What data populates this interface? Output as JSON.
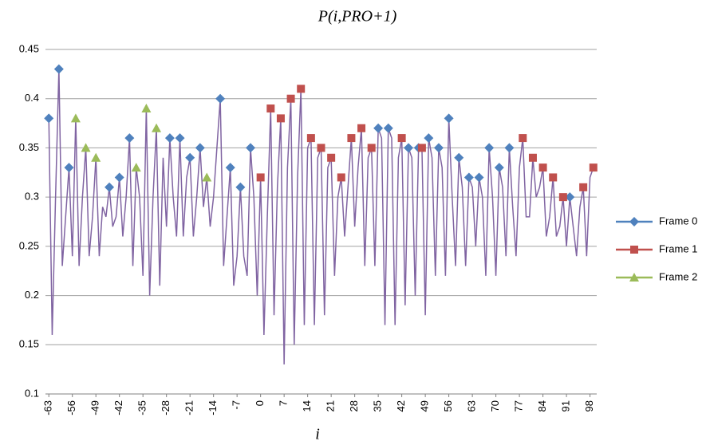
{
  "chart_data": {
    "type": "line",
    "title": "P(i,PRO+1)",
    "xlabel": "i",
    "xlim": [
      -64,
      100
    ],
    "ylim": [
      0.1,
      0.45
    ],
    "yticks": [
      0.1,
      0.15,
      0.2,
      0.25,
      0.3,
      0.35,
      0.4,
      0.45
    ],
    "xticks": [
      -63,
      -56,
      -49,
      -42,
      -35,
      -28,
      -21,
      -14,
      -7,
      0,
      7,
      14,
      21,
      28,
      35,
      42,
      49,
      56,
      63,
      70,
      77,
      84,
      91,
      98
    ],
    "grid": true,
    "legend": "right",
    "line": {
      "color": "#8064a2",
      "x": [
        -63,
        -62,
        -61,
        -60,
        -59,
        -58,
        -57,
        -56,
        -55,
        -54,
        -53,
        -52,
        -51,
        -50,
        -49,
        -48,
        -47,
        -46,
        -45,
        -44,
        -43,
        -42,
        -41,
        -40,
        -39,
        -38,
        -37,
        -36,
        -35,
        -34,
        -33,
        -32,
        -31,
        -30,
        -29,
        -28,
        -27,
        -26,
        -25,
        -24,
        -23,
        -22,
        -21,
        -20,
        -19,
        -18,
        -17,
        -16,
        -15,
        -14,
        -13,
        -12,
        -11,
        -10,
        -9,
        -8,
        -7,
        -6,
        -5,
        -4,
        -3,
        -2,
        -1,
        0,
        1,
        2,
        3,
        4,
        5,
        6,
        7,
        8,
        9,
        10,
        11,
        12,
        13,
        14,
        15,
        16,
        17,
        18,
        19,
        20,
        21,
        22,
        23,
        24,
        25,
        26,
        27,
        28,
        29,
        30,
        31,
        32,
        33,
        34,
        35,
        36,
        37,
        38,
        39,
        40,
        41,
        42,
        43,
        44,
        45,
        46,
        47,
        48,
        49,
        50,
        51,
        52,
        53,
        54,
        55,
        56,
        57,
        58,
        59,
        60,
        61,
        62,
        63,
        64,
        65,
        66,
        67,
        68,
        69,
        70,
        71,
        72,
        73,
        74,
        75,
        76,
        77,
        78,
        79,
        80,
        81,
        82,
        83,
        84,
        85,
        86,
        87,
        88,
        89,
        90,
        91,
        92,
        93,
        94,
        95,
        96,
        97,
        98,
        99
      ],
      "values": [
        0.38,
        0.16,
        0.3,
        0.43,
        0.23,
        0.28,
        0.33,
        0.24,
        0.38,
        0.23,
        0.3,
        0.35,
        0.24,
        0.28,
        0.34,
        0.24,
        0.29,
        0.28,
        0.31,
        0.27,
        0.28,
        0.32,
        0.26,
        0.3,
        0.36,
        0.23,
        0.33,
        0.3,
        0.22,
        0.39,
        0.2,
        0.3,
        0.37,
        0.21,
        0.34,
        0.27,
        0.36,
        0.3,
        0.26,
        0.36,
        0.26,
        0.32,
        0.34,
        0.26,
        0.3,
        0.35,
        0.29,
        0.32,
        0.27,
        0.3,
        0.35,
        0.4,
        0.23,
        0.28,
        0.33,
        0.21,
        0.24,
        0.31,
        0.24,
        0.22,
        0.35,
        0.3,
        0.2,
        0.32,
        0.16,
        0.28,
        0.39,
        0.18,
        0.31,
        0.38,
        0.13,
        0.33,
        0.4,
        0.15,
        0.32,
        0.41,
        0.17,
        0.35,
        0.36,
        0.17,
        0.34,
        0.35,
        0.18,
        0.33,
        0.34,
        0.22,
        0.3,
        0.32,
        0.26,
        0.31,
        0.36,
        0.27,
        0.33,
        0.37,
        0.23,
        0.34,
        0.35,
        0.23,
        0.37,
        0.36,
        0.17,
        0.37,
        0.36,
        0.17,
        0.34,
        0.36,
        0.19,
        0.35,
        0.34,
        0.2,
        0.35,
        0.35,
        0.18,
        0.36,
        0.34,
        0.22,
        0.35,
        0.33,
        0.22,
        0.38,
        0.3,
        0.23,
        0.34,
        0.31,
        0.23,
        0.32,
        0.31,
        0.25,
        0.32,
        0.3,
        0.22,
        0.35,
        0.3,
        0.22,
        0.33,
        0.31,
        0.24,
        0.35,
        0.29,
        0.24,
        0.33,
        0.36,
        0.28,
        0.28,
        0.34,
        0.3,
        0.31,
        0.33,
        0.26,
        0.28,
        0.32,
        0.26,
        0.27,
        0.3,
        0.25,
        0.3,
        0.27,
        0.24,
        0.29,
        0.31,
        0.24,
        0.32,
        0.33
      ]
    },
    "series": [
      {
        "name": "Frame 0",
        "color": "#4f81bd",
        "marker": "diamond",
        "x": [
          -63,
          -60,
          -57,
          -45,
          -42,
          -39,
          -27,
          -24,
          -21,
          -18,
          -12,
          -9,
          -6,
          -3,
          35,
          38,
          44,
          47,
          50,
          53,
          56,
          59,
          62,
          65,
          68,
          71,
          74,
          92
        ],
        "values": [
          0.38,
          0.43,
          0.33,
          0.31,
          0.32,
          0.36,
          0.36,
          0.36,
          0.34,
          0.35,
          0.4,
          0.33,
          0.31,
          0.35,
          0.37,
          0.37,
          0.35,
          0.35,
          0.36,
          0.35,
          0.38,
          0.34,
          0.32,
          0.32,
          0.35,
          0.33,
          0.35,
          0.3
        ]
      },
      {
        "name": "Frame 1",
        "color": "#c0504d",
        "marker": "square",
        "x": [
          0,
          3,
          6,
          9,
          12,
          15,
          18,
          21,
          24,
          27,
          30,
          33,
          42,
          48,
          78,
          81,
          84,
          87,
          90,
          96,
          99
        ],
        "values": [
          0.32,
          0.39,
          0.38,
          0.4,
          0.41,
          0.36,
          0.35,
          0.34,
          0.32,
          0.36,
          0.37,
          0.35,
          0.36,
          0.35,
          0.36,
          0.34,
          0.33,
          0.32,
          0.3,
          0.31,
          0.33
        ]
      },
      {
        "name": "Frame 2",
        "color": "#9bbb59",
        "marker": "triangle",
        "x": [
          -55,
          -52,
          -49,
          -37,
          -34,
          -31,
          -16
        ],
        "values": [
          0.38,
          0.35,
          0.34,
          0.33,
          0.39,
          0.37,
          0.32
        ]
      }
    ]
  }
}
